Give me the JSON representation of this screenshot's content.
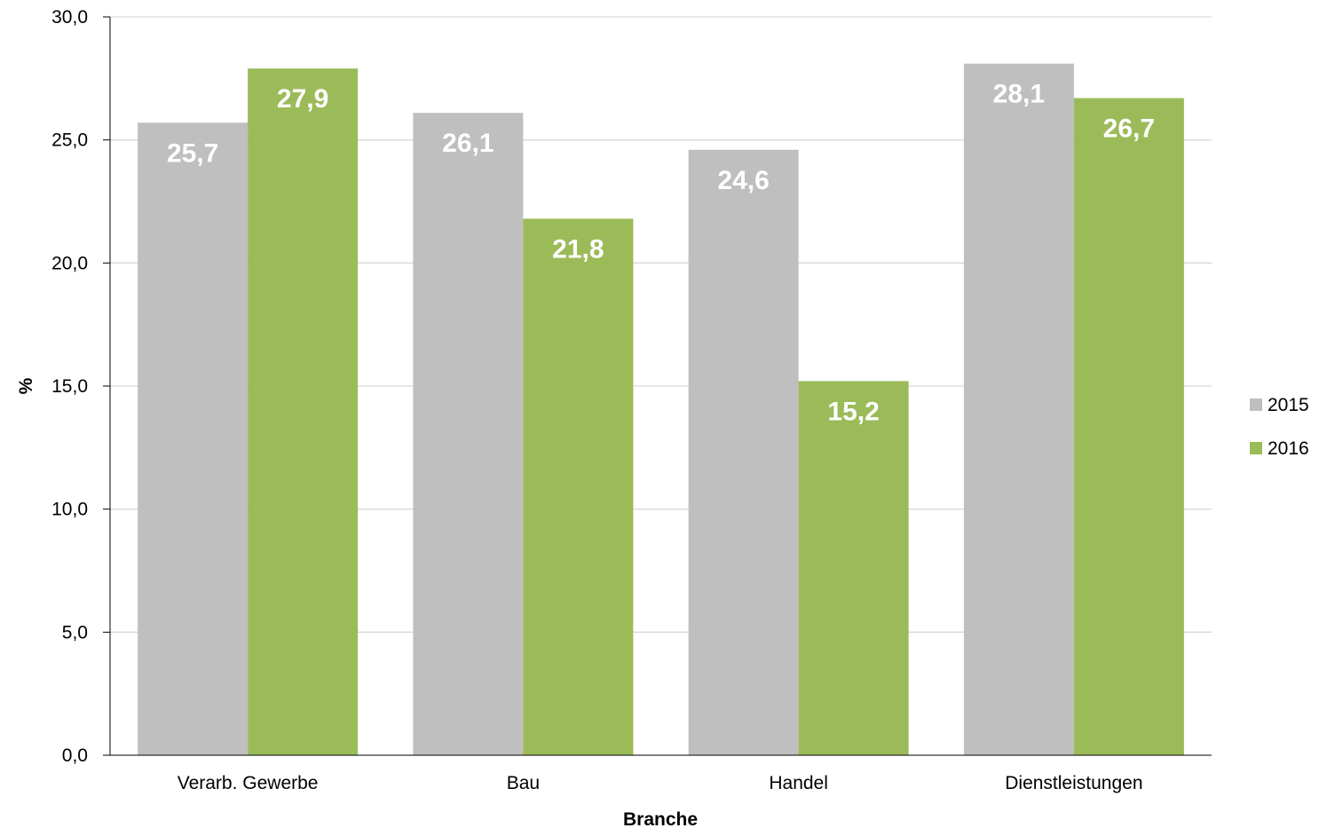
{
  "chart_data": {
    "type": "bar",
    "categories": [
      "Verarb. Gewerbe",
      "Bau",
      "Handel",
      "Dienstleistungen"
    ],
    "series": [
      {
        "name": "2015",
        "values": [
          25.7,
          26.1,
          24.6,
          28.1
        ],
        "labels": [
          "25,7",
          "26,1",
          "24,6",
          "28,1"
        ],
        "color": "#bfbfbf"
      },
      {
        "name": "2016",
        "values": [
          27.9,
          21.8,
          15.2,
          26.7
        ],
        "labels": [
          "27,9",
          "21,8",
          "15,2",
          "26,7"
        ],
        "color": "#9bbb59"
      }
    ],
    "xlabel": "Branche",
    "ylabel": "%",
    "ylim": [
      0,
      30
    ],
    "yticks": [
      0,
      5,
      10,
      15,
      20,
      25,
      30
    ],
    "ytick_labels": [
      "0,0",
      "5,0",
      "10,0",
      "15,0",
      "20,0",
      "25,0",
      "30,0"
    ],
    "grid": true,
    "gridline_color": "#d9d9d9",
    "legend_position": "right"
  }
}
